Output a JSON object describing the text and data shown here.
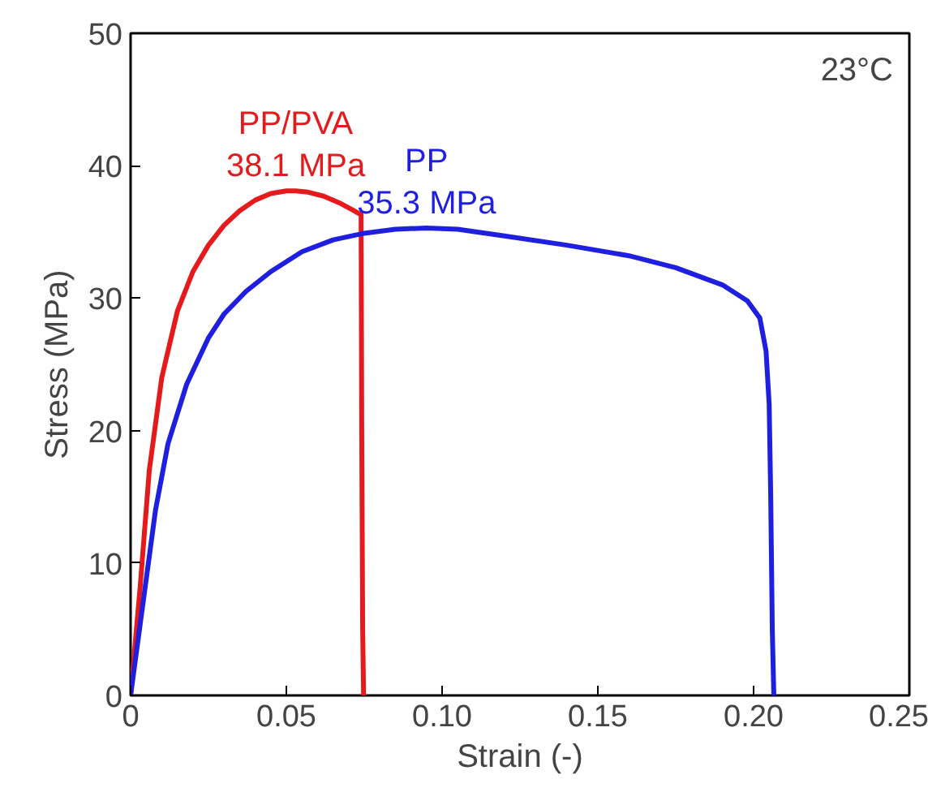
{
  "chart_data": {
    "type": "line",
    "xlabel": "Strain (-)",
    "ylabel": "Stress (MPa)",
    "xlim": [
      0,
      0.25
    ],
    "xticks": [
      {
        "value": 0,
        "label": "0"
      },
      0.05,
      {
        "value": 0.1,
        "label": "0.10"
      },
      0.15,
      {
        "value": 0.2,
        "label": "0.20"
      },
      0.25
    ],
    "ylim": [
      0,
      50
    ],
    "yticks": [
      0,
      10,
      20,
      30,
      40,
      50
    ],
    "grid": false,
    "marker": "none",
    "line_style": "solid",
    "series": [
      {
        "name": "PP/PVA",
        "color": "#e41a1c",
        "x": [
          0,
          0.003,
          0.006,
          0.01,
          0.015,
          0.02,
          0.025,
          0.03,
          0.035,
          0.04,
          0.045,
          0.05,
          0.053,
          0.057,
          0.062,
          0.067,
          0.071,
          0.074,
          0.0742,
          0.0745,
          0.0748
        ],
        "values": [
          0,
          8,
          17,
          24,
          29,
          32,
          34,
          35.5,
          36.6,
          37.4,
          37.9,
          38.1,
          38.1,
          38,
          37.7,
          37.2,
          36.7,
          36.3,
          20,
          5,
          0
        ]
      },
      {
        "name": "PP",
        "color": "#1f1fe0",
        "x": [
          0,
          0.004,
          0.008,
          0.012,
          0.018,
          0.025,
          0.03,
          0.037,
          0.045,
          0.055,
          0.065,
          0.075,
          0.085,
          0.095,
          0.105,
          0.12,
          0.14,
          0.16,
          0.175,
          0.19,
          0.198,
          0.202,
          0.204,
          0.205,
          0.2055,
          0.206,
          0.2065
        ],
        "values": [
          0,
          7,
          14,
          19,
          23.5,
          27,
          28.8,
          30.5,
          32,
          33.5,
          34.4,
          34.9,
          35.2,
          35.3,
          35.2,
          34.7,
          34,
          33.2,
          32.3,
          31,
          29.8,
          28.5,
          26,
          22,
          15,
          5,
          0
        ]
      }
    ],
    "annotations": [
      {
        "text": "38.1 MPa",
        "x": 0.053,
        "y": 38.1
      },
      {
        "text": "35.3 MPa",
        "x": 0.095,
        "y": 35.3
      },
      "23°C"
    ]
  }
}
